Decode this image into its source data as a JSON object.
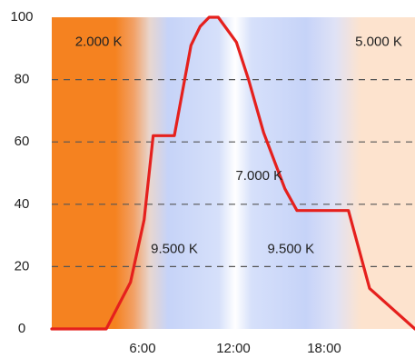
{
  "chart_data": {
    "type": "line",
    "xlim": [
      0,
      24
    ],
    "ylim": [
      0,
      100
    ],
    "grid": true,
    "x_ticks": [
      6,
      12,
      18
    ],
    "x_tick_labels": [
      "6:00",
      "12:00",
      "18:00"
    ],
    "y_ticks": [
      0,
      20,
      40,
      60,
      80,
      100
    ],
    "y_tick_labels": [
      "0",
      "20",
      "40",
      "60",
      "80",
      "100"
    ],
    "series": [
      {
        "color": "#e5201d",
        "x": [
          0,
          3.6,
          5.2,
          6.1,
          6.7,
          8.1,
          9.2,
          9.8,
          10.4,
          11.0,
          12.2,
          13.0,
          14.0,
          15.4,
          16.2,
          17.0,
          19.6,
          21.0,
          24.0
        ],
        "y": [
          0,
          0,
          15,
          35,
          62,
          62,
          91,
          97,
          100,
          100,
          92,
          80,
          63,
          45,
          38,
          38,
          38,
          13,
          0
        ]
      }
    ],
    "annotations": [
      {
        "text": "2.000 K",
        "x": 3.1,
        "y": 92
      },
      {
        "text": "5.000 K",
        "x": 21.6,
        "y": 92
      },
      {
        "text": "7.000 K",
        "x": 13.7,
        "y": 49
      },
      {
        "text": "9.500 K",
        "x": 8.1,
        "y": 25.5
      },
      {
        "text": "9.500 K",
        "x": 15.8,
        "y": 25.5
      }
    ],
    "background_bands": {
      "colors": {
        "warm": "#f58220",
        "cool": "#c6d3f8",
        "white": "#ffffff",
        "peach": "#fde3ce"
      }
    }
  }
}
